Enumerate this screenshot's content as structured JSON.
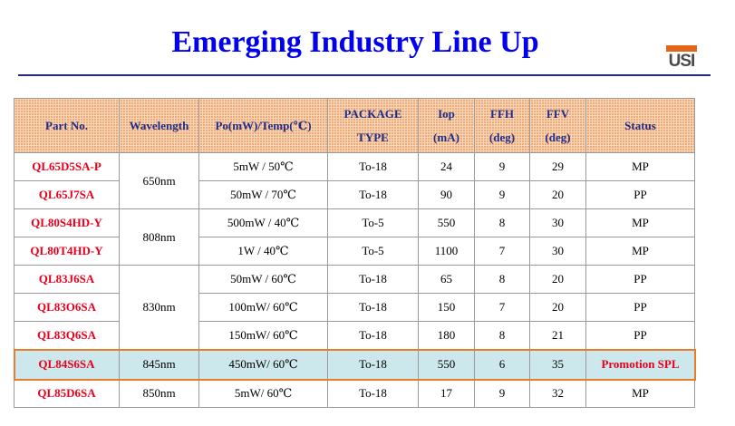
{
  "title": "Emerging Industry Line Up",
  "logo_text": "USI",
  "colors": {
    "title": "#0000ee",
    "part_no": "#e8001c",
    "header_text": "#1e2d8a",
    "highlight_row": "#cde8ec",
    "highlight_border": "#e77d2a"
  },
  "table": {
    "headers": {
      "part_no": "Part No.",
      "wavelength": "Wavelength",
      "po_temp": "Po(mW)/Temp(℃)",
      "package_1": "PACKAGE",
      "package_2": "TYPE",
      "iop_1": "Iop",
      "iop_2": "(mA)",
      "ffh_1": "FFH",
      "ffh_2": "(deg)",
      "ffv_1": "FFV",
      "ffv_2": "(deg)",
      "status": "Status"
    },
    "wavelength_groups": [
      "650nm",
      "808nm",
      "830nm",
      "845nm",
      "850nm"
    ],
    "rows": [
      {
        "part_no": "QL65D5SA-P",
        "po_temp": "5mW / 50℃",
        "package": "To-18",
        "iop": "24",
        "ffh": "9",
        "ffv": "29",
        "status": "MP"
      },
      {
        "part_no": "QL65J7SA",
        "po_temp": "50mW / 70℃",
        "package": "To-18",
        "iop": "90",
        "ffh": "9",
        "ffv": "20",
        "status": "PP"
      },
      {
        "part_no": "QL80S4HD-Y",
        "po_temp": "500mW / 40℃",
        "package": "To-5",
        "iop": "550",
        "ffh": "8",
        "ffv": "30",
        "status": "MP"
      },
      {
        "part_no": "QL80T4HD-Y",
        "po_temp": "1W / 40℃",
        "package": "To-5",
        "iop": "1100",
        "ffh": "7",
        "ffv": "30",
        "status": "MP"
      },
      {
        "part_no": "QL83J6SA",
        "po_temp": "50mW / 60℃",
        "package": "To-18",
        "iop": "65",
        "ffh": "8",
        "ffv": "20",
        "status": "PP"
      },
      {
        "part_no": "QL83O6SA",
        "po_temp": "100mW/ 60℃",
        "package": "To-18",
        "iop": "150",
        "ffh": "7",
        "ffv": "20",
        "status": "PP"
      },
      {
        "part_no": "QL83Q6SA",
        "po_temp": "150mW/ 60℃",
        "package": "To-18",
        "iop": "180",
        "ffh": "8",
        "ffv": "21",
        "status": "PP"
      },
      {
        "part_no": "QL84S6SA",
        "po_temp": "450mW/ 60℃",
        "package": "To-18",
        "iop": "550",
        "ffh": "6",
        "ffv": "35",
        "status": "Promotion SPL"
      },
      {
        "part_no": "QL85D6SA",
        "po_temp": "5mW/ 60℃",
        "package": "To-18",
        "iop": "17",
        "ffh": "9",
        "ffv": "32",
        "status": "MP"
      }
    ]
  }
}
